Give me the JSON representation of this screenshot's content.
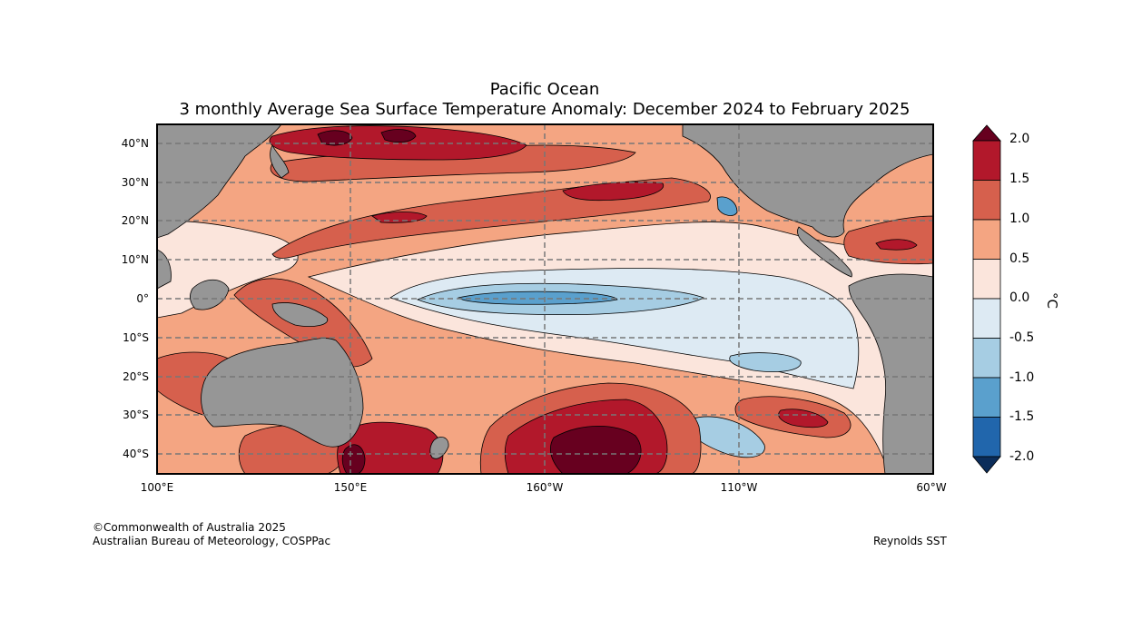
{
  "title": {
    "line1": "Pacific Ocean",
    "line2": "3 monthly Average Sea Surface Temperature Anomaly: December 2024 to February 2025"
  },
  "map": {
    "lon_ticks": [
      "100°E",
      "150°E",
      "160°W",
      "110°W",
      "60°W"
    ],
    "lat_ticks": [
      "40°N",
      "30°N",
      "20°N",
      "10°N",
      "0°",
      "10°S",
      "20°S",
      "30°S",
      "40°S"
    ],
    "land_color": "#969696"
  },
  "colorbar": {
    "unit": "°C",
    "labels": [
      "2.0",
      "1.5",
      "1.0",
      "0.5",
      "0.0",
      "-0.5",
      "-1.0",
      "-1.5",
      "-2.0"
    ],
    "colors": [
      "#67001f",
      "#b2182b",
      "#d6604d",
      "#f4a582",
      "#fbe5dc",
      "#ddeaf3",
      "#a6cde3",
      "#5aa0cd",
      "#2166ac",
      "#0b2d5a"
    ]
  },
  "footer": {
    "copyright": "©Commonwealth of Australia 2025",
    "agency": "Australian Bureau of Meteorology, COSPPac",
    "source": "Reynolds SST"
  }
}
